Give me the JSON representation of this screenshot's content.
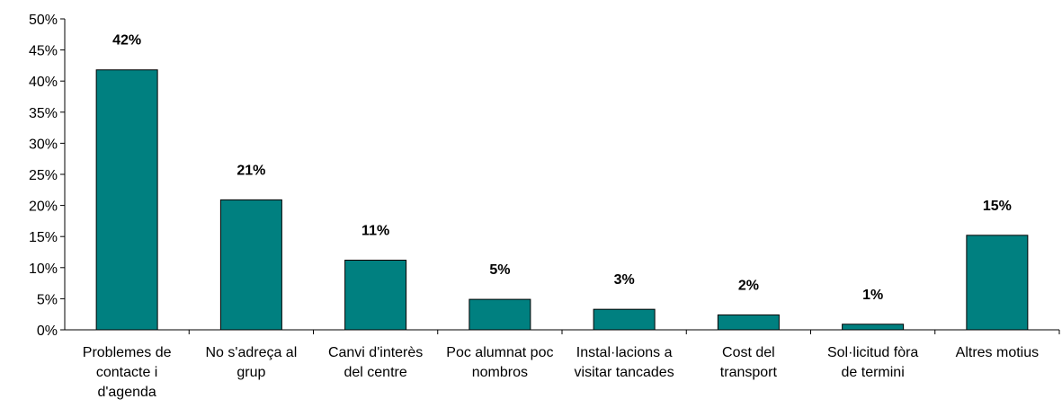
{
  "chart_data": {
    "type": "bar",
    "categories": [
      "Problemes de contacte i d'agenda",
      "No s'adreça al grup",
      "Canvi d'interès del centre",
      "Poc alumnat poc nombros",
      "Instal·lacions a visitar tancades",
      "Cost del transport",
      "Sol·licitud fòra de termini",
      "Altres motius"
    ],
    "values": [
      41.8,
      20.9,
      11.2,
      4.9,
      3.3,
      2.4,
      0.9,
      15.2
    ],
    "value_labels": [
      "42%",
      "21%",
      "11%",
      "5%",
      "3%",
      "2%",
      "1%",
      "15%"
    ],
    "color": "#008080",
    "ylim": [
      0,
      50
    ],
    "yticks": [
      {
        "value": 0,
        "label": "0%"
      },
      {
        "value": 5,
        "label": "5%"
      },
      {
        "value": 10,
        "label": "10%"
      },
      {
        "value": 15,
        "label": "15%"
      },
      {
        "value": 20,
        "label": "20%"
      },
      {
        "value": 25,
        "label": "25%"
      },
      {
        "value": 30,
        "label": "30%"
      },
      {
        "value": 35,
        "label": "35%"
      },
      {
        "value": 40,
        "label": "40%"
      },
      {
        "value": 45,
        "label": "45%"
      },
      {
        "value": 50,
        "label": "50%"
      }
    ],
    "grid": false
  }
}
